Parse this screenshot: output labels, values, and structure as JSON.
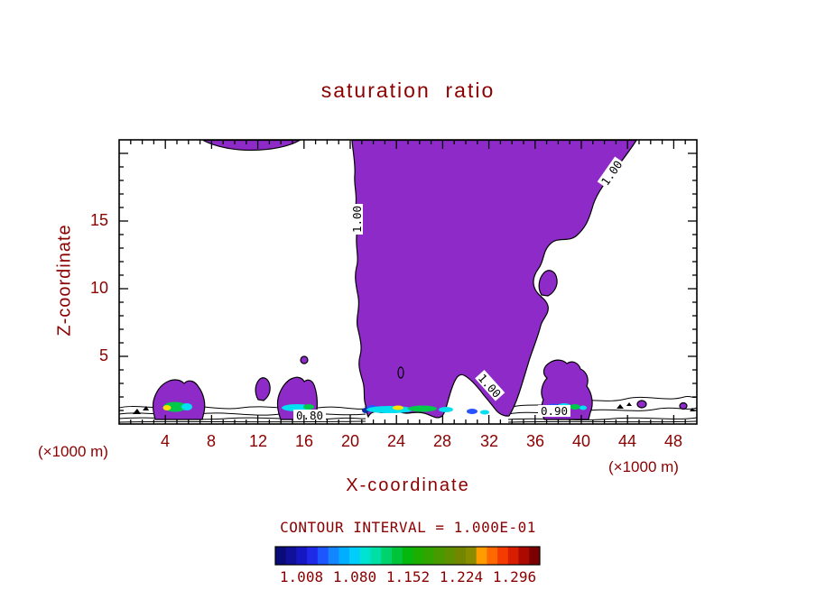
{
  "chart_data": {
    "type": "contour",
    "title": "saturation  ratio",
    "xlabel": "X-coordinate",
    "ylabel": "Z-coordinate",
    "x_unit_label_left": "(×1000 m)",
    "x_unit_label_right": "(×1000 m)",
    "x_range": [
      0,
      50
    ],
    "y_range": [
      0,
      21
    ],
    "x_ticks": [
      4,
      8,
      12,
      16,
      20,
      24,
      28,
      32,
      36,
      40,
      44,
      48
    ],
    "x_minor_tick_step": 1,
    "y_ticks": [
      5,
      10,
      15
    ],
    "y_minor_tick_step": 1,
    "grid": false,
    "contour_interval": 0.1,
    "contour_interval_label": "CONTOUR INTERVAL = 1.000E-01",
    "labeled_contour_levels": [
      "0.80",
      "0.90",
      "1.00"
    ],
    "contour_line_labels": {
      "upper_right": "1.00",
      "left_vertical": "1.00",
      "notch": "1.00",
      "bottom_left": "0.80",
      "bottom_right": "0.90"
    },
    "filled_regions_note": "Large saturated region (ratio >= 1.0) filled purple: main plume from x≈20-44 ×1000 m reaching from surface layer to top of domain, thin sliver at top near x≈8-16, small surface cells near x≈3-7, 11-14, 12-17, 36-41; thin near-surface contour lines (0.5-0.9 levels) across full width; cyan/green/yellow cells mark highest ratios in shallow surface layer",
    "colorbar": {
      "labels": [
        "1.008",
        "1.080",
        "1.152",
        "1.224",
        "1.296"
      ],
      "colors": [
        "#0a0a78",
        "#10109b",
        "#1717c2",
        "#1e2ae8",
        "#1d55ff",
        "#1385ff",
        "#00adff",
        "#00cdfa",
        "#00e2d2",
        "#00dfa6",
        "#00d36e",
        "#00c43c",
        "#06b80e",
        "#1cae00",
        "#32a400",
        "#489a00",
        "#5e9000",
        "#748600",
        "#8a8c00",
        "#ff9c00",
        "#ff6a00",
        "#f43c00",
        "#d81e00",
        "#ac0a00",
        "#7c0000"
      ]
    },
    "colors": {
      "text": "#8b0000",
      "axis": "#000000",
      "contour_line": "#000000",
      "cloud": "#8d2ac8",
      "cyan": "#00e0f0",
      "green": "#00c84b",
      "yellow": "#ffe000",
      "blue": "#2753ff",
      "dark_blue": "#0b2ea0"
    }
  }
}
